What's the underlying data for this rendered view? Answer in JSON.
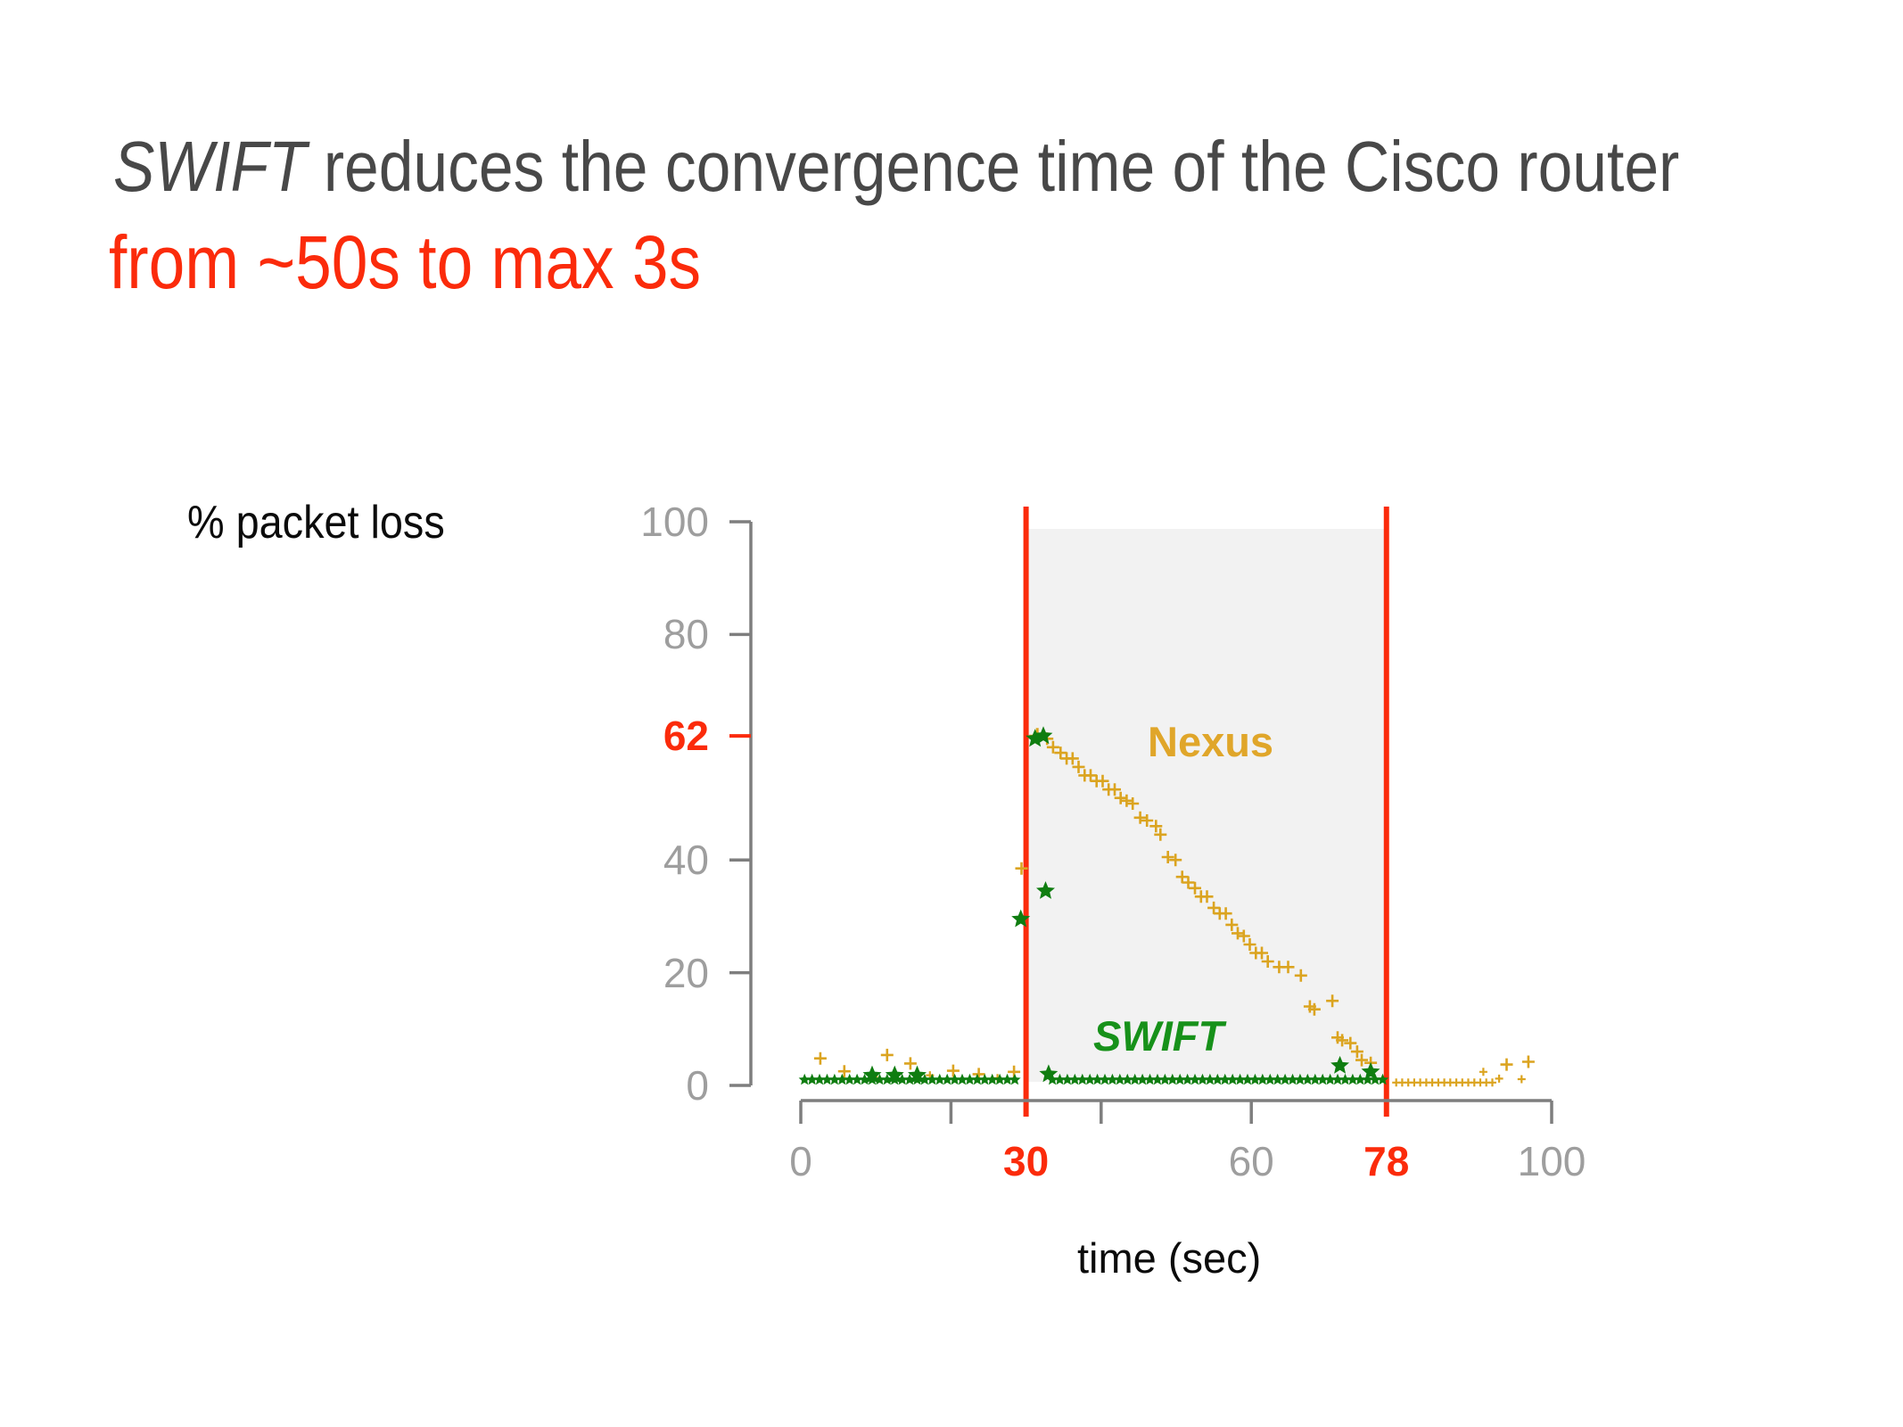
{
  "slide": {
    "title_italic": "SWIFT",
    "title_rest": " reduces the convergence time of the Cisco router",
    "subtitle": "from ~50s to max 3s"
  },
  "colors": {
    "accent_red": "#FB2B0B",
    "nexus_gold": "#DBA420",
    "nexus_label_gold": "#E0A62A",
    "swift_green": "#0F7D10",
    "swift_label_green": "#17911A",
    "axis_line": "#7E7E7E",
    "tick_label_gray": "#9E9E9E",
    "shade_gray": "#F2F2F2",
    "title_gray": "#484848",
    "text_black": "#0B0B0B"
  },
  "chart_data": {
    "type": "scatter",
    "title": "",
    "xlabel": "time (sec)",
    "ylabel": "% packet loss",
    "xlim": [
      0,
      100
    ],
    "ylim": [
      0,
      100
    ],
    "grid": false,
    "x_axis": {
      "tick_marks": [
        0,
        20,
        40,
        60,
        100
      ],
      "tick_labels": [
        {
          "v": 0,
          "label": "0",
          "emphasis": false
        },
        {
          "v": 30,
          "label": "30",
          "emphasis": true
        },
        {
          "v": 60,
          "label": "60",
          "emphasis": false
        },
        {
          "v": 78,
          "label": "78",
          "emphasis": true
        },
        {
          "v": 100,
          "label": "100",
          "emphasis": false
        }
      ]
    },
    "y_axis": {
      "tick_labels": [
        {
          "v": 100,
          "label": "100",
          "emphasis": false
        },
        {
          "v": 80,
          "label": "80",
          "emphasis": false
        },
        {
          "v": 62,
          "label": "62",
          "emphasis": true
        },
        {
          "v": 40,
          "label": "40",
          "emphasis": false
        },
        {
          "v": 20,
          "label": "20",
          "emphasis": false
        },
        {
          "v": 0,
          "label": "0",
          "emphasis": false
        }
      ]
    },
    "vlines": [
      {
        "x": 30
      },
      {
        "x": 78
      }
    ],
    "shaded_region": {
      "from": 30,
      "to": 78
    },
    "series": [
      {
        "name": "Nexus",
        "marker": "plus",
        "points": [
          [
            2.6,
            4.8
          ],
          [
            5.8,
            2.5
          ],
          [
            9.7,
            1.6,
            1
          ],
          [
            11.5,
            5.4
          ],
          [
            14.6,
            3.9
          ],
          [
            17.2,
            1.8,
            1
          ],
          [
            20.3,
            2.6
          ],
          [
            23.7,
            2.0
          ],
          [
            26.2,
            1.3,
            1
          ],
          [
            28.4,
            2.4
          ],
          [
            29.4,
            38.5
          ],
          [
            31.5,
            62,
            3
          ],
          [
            32.8,
            61.5
          ],
          [
            33.6,
            60
          ],
          [
            34.6,
            59
          ],
          [
            35.4,
            58
          ],
          [
            36.2,
            58
          ],
          [
            37,
            56.5
          ],
          [
            37.8,
            55
          ],
          [
            38.6,
            55
          ],
          [
            39.4,
            54
          ],
          [
            40.2,
            54
          ],
          [
            41,
            52.5
          ],
          [
            41.8,
            52.5
          ],
          [
            42.6,
            51
          ],
          [
            43.4,
            50.5
          ],
          [
            44.2,
            50
          ],
          [
            45.2,
            47.5
          ],
          [
            46.1,
            47
          ],
          [
            47.3,
            46
          ],
          [
            47.9,
            44.5
          ],
          [
            48.9,
            40.5
          ],
          [
            49.9,
            40
          ],
          [
            50.8,
            37
          ],
          [
            51.6,
            36
          ],
          [
            52.5,
            35
          ],
          [
            53.3,
            33.5
          ],
          [
            54.1,
            33.5
          ],
          [
            55,
            31.5
          ],
          [
            55.8,
            30.5
          ],
          [
            56.6,
            30.5
          ],
          [
            57.4,
            28.5
          ],
          [
            58.2,
            27
          ],
          [
            59,
            26.5
          ],
          [
            59.8,
            25
          ],
          [
            60.6,
            23.5
          ],
          [
            61.4,
            23.5
          ],
          [
            62.2,
            22
          ],
          [
            63.7,
            21
          ],
          [
            64.9,
            21
          ],
          [
            66.6,
            19.5
          ],
          [
            67.8,
            14
          ],
          [
            68.4,
            13.5
          ],
          [
            70.8,
            15
          ],
          [
            71.5,
            8.5
          ],
          [
            72.1,
            8
          ],
          [
            73.2,
            7.5
          ],
          [
            74.1,
            6
          ],
          [
            74.7,
            4.5
          ],
          [
            75.9,
            4
          ],
          [
            90.9,
            2.4,
            1
          ],
          [
            93,
            1.2,
            1
          ],
          [
            94,
            3.7
          ],
          [
            96,
            1.1,
            1
          ],
          [
            96.9,
            4.2
          ]
        ],
        "runs": [
          {
            "t_start": 79.3,
            "t_end": 92.5,
            "step": 0.8,
            "v": 0.5,
            "size": 1
          }
        ]
      },
      {
        "name": "SWIFT",
        "marker": "star",
        "points": [
          [
            9.5,
            1.8,
            3
          ],
          [
            12.5,
            1.8,
            3
          ],
          [
            15.5,
            1.8,
            3
          ],
          [
            29.3,
            29.5,
            3
          ],
          [
            31.2,
            61.5,
            3
          ],
          [
            32.3,
            62,
            3
          ],
          [
            32.6,
            34.5,
            3
          ],
          [
            33,
            2,
            3
          ],
          [
            71.8,
            3.5,
            3
          ],
          [
            75.9,
            2.4,
            3
          ]
        ],
        "runs": [
          {
            "t_start": 0.5,
            "t_end": 29,
            "step": 1,
            "v": 1,
            "size": 1
          },
          {
            "t_start": 33.5,
            "t_end": 77.5,
            "step": 1,
            "v": 1,
            "size": 1
          }
        ]
      }
    ]
  }
}
